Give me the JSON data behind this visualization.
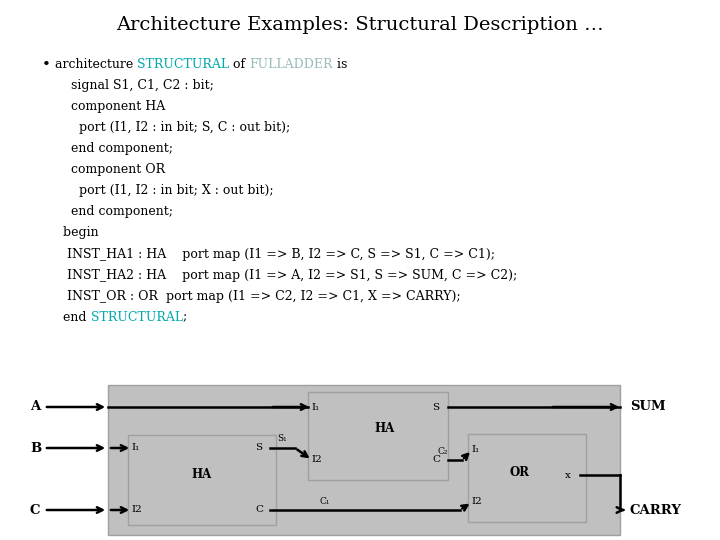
{
  "title": "Architecture Examples: Structural Description …",
  "bg_color": "#ffffff",
  "teal": "#00aaaa",
  "fulladder_color": "#99bbbb",
  "lines": [
    [
      {
        "t": "architecture ",
        "c": "#000000"
      },
      {
        "t": "STRUCTURAL",
        "c": "#00aaaa"
      },
      {
        "t": " of ",
        "c": "#000000"
      },
      {
        "t": "FULLADDER",
        "c": "#99bbbb"
      },
      {
        "t": " is",
        "c": "#000000"
      }
    ],
    [
      {
        "t": "    signal S1, C1, C2 : bit;",
        "c": "#000000"
      }
    ],
    [
      {
        "t": "    component HA",
        "c": "#000000"
      }
    ],
    [
      {
        "t": "      port (I1, I2 : in bit; S, C : out bit);",
        "c": "#000000"
      }
    ],
    [
      {
        "t": "    end component;",
        "c": "#000000"
      }
    ],
    [
      {
        "t": "    component OR",
        "c": "#000000"
      }
    ],
    [
      {
        "t": "      port (I1, I2 : in bit; X : out bit);",
        "c": "#000000"
      }
    ],
    [
      {
        "t": "    end component;",
        "c": "#000000"
      }
    ],
    [
      {
        "t": "  begin",
        "c": "#000000"
      }
    ],
    [
      {
        "t": "   INST_HA1 : HA    port map (I1 => B, I2 => C, S => S1, C => C1);",
        "c": "#000000"
      }
    ],
    [
      {
        "t": "   INST_HA2 : HA    port map (I1 => A, I2 => S1, S => SUM, C => C2);",
        "c": "#000000"
      }
    ],
    [
      {
        "t": "   INST_OR : OR  port map (I1 => C2, I2 => C1, X => CARRY);",
        "c": "#000000"
      }
    ],
    [
      {
        "t": "  end ",
        "c": "#000000"
      },
      {
        "t": "STRUCTURAL",
        "c": "#00aaaa"
      },
      {
        "t": ";",
        "c": "#000000"
      }
    ]
  ]
}
